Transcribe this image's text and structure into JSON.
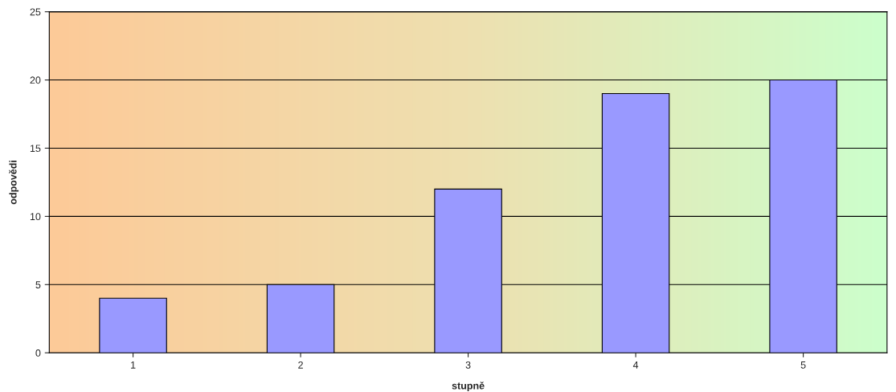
{
  "chart_data": {
    "type": "bar",
    "xlabel": "stupně",
    "ylabel": "odpovědi",
    "categories": [
      "1",
      "2",
      "3",
      "4",
      "5"
    ],
    "values": [
      4,
      5,
      12,
      19,
      20
    ],
    "color": "#9999ff",
    "ylim": [
      0,
      25
    ],
    "yticks": [
      0,
      5,
      10,
      15,
      20,
      25
    ],
    "grid": "y"
  }
}
